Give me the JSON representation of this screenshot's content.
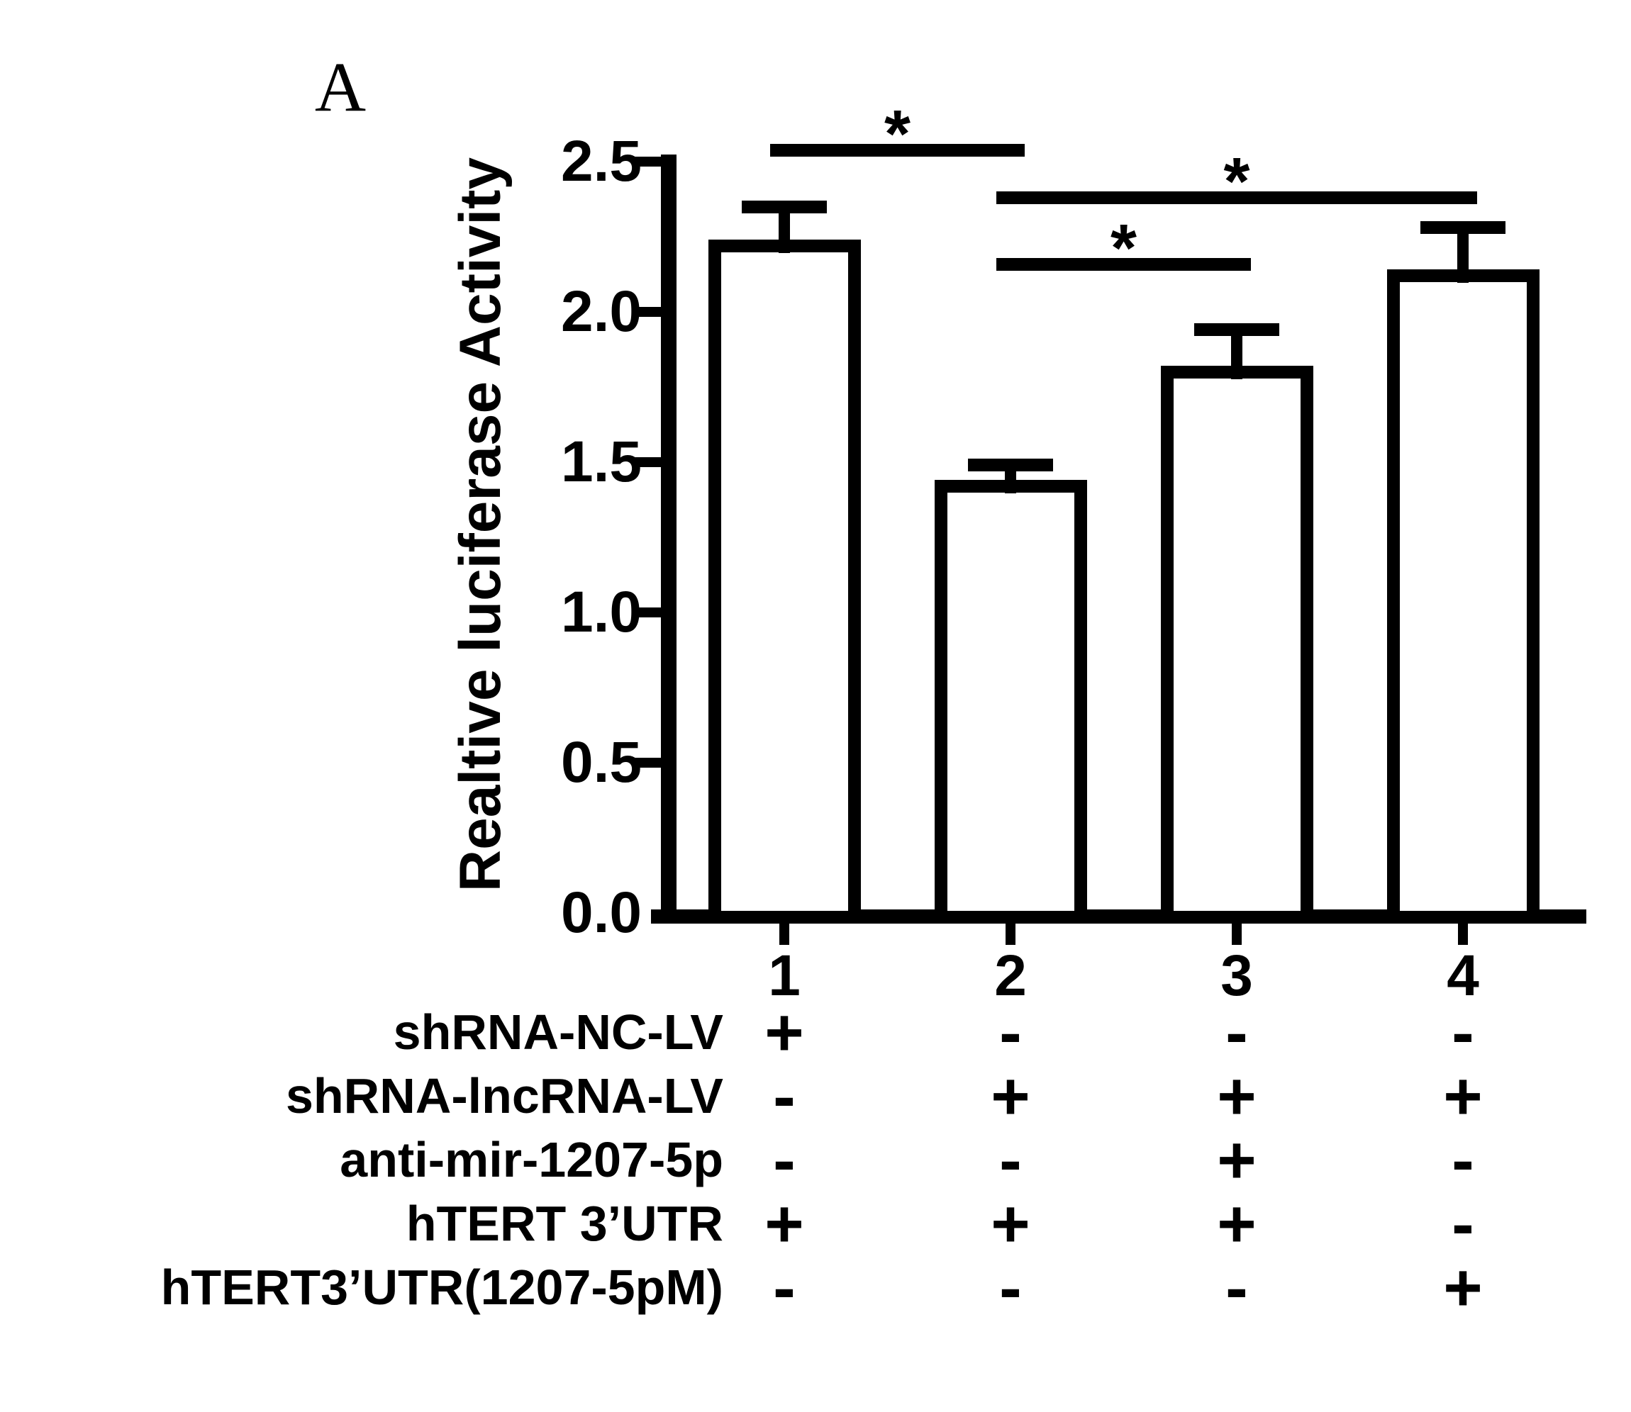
{
  "panel_label": "A",
  "chart_data": {
    "type": "bar",
    "title": "",
    "xlabel": "",
    "ylabel": "Realtive luciferase Activity",
    "ylim": [
      0,
      2.5
    ],
    "yticks": [
      0.0,
      0.5,
      1.0,
      1.5,
      2.0,
      2.5
    ],
    "ytick_labels": [
      "0.0",
      "0.5",
      "1.0",
      "1.5",
      "2.0",
      "2.5"
    ],
    "categories": [
      "1",
      "2",
      "3",
      "4"
    ],
    "values": [
      2.22,
      1.42,
      1.8,
      2.12
    ],
    "errors_upper": [
      0.13,
      0.07,
      0.14,
      0.16
    ],
    "bar_fill": "#ffffff",
    "bar_border": "#000000",
    "grid": "off",
    "legend": "none",
    "significance": [
      {
        "from": "1",
        "to": "2",
        "label": "*",
        "y": 2.56
      },
      {
        "from": "2",
        "to": "4",
        "label": "*",
        "y": 2.4
      },
      {
        "from": "2",
        "to": "3",
        "label": "*",
        "y": 2.18
      }
    ],
    "condition_matrix": {
      "rows": [
        {
          "label": "shRNA-NC-LV",
          "signs": [
            "+",
            "-",
            "-",
            "-"
          ]
        },
        {
          "label": "shRNA-lncRNA-LV",
          "signs": [
            "-",
            "+",
            "+",
            "+"
          ]
        },
        {
          "label": "anti-mir-1207-5p",
          "signs": [
            "-",
            "-",
            "+",
            "-"
          ]
        },
        {
          "label": "hTERT 3’UTR",
          "signs": [
            "+",
            "+",
            "+",
            "-"
          ]
        },
        {
          "label": "hTERT3’UTR(1207-5pM)",
          "signs": [
            "-",
            "-",
            "-",
            "+"
          ]
        }
      ]
    }
  }
}
